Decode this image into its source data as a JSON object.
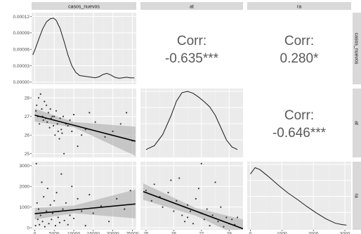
{
  "chart_data": {
    "type": "pairs",
    "variables": [
      "casos_nuevos",
      "at",
      "ra"
    ],
    "axis_ranges": {
      "casos_nuevos": [
        -800,
        26000
      ],
      "at": [
        24.8,
        28.5
      ],
      "ra": [
        -100,
        3200
      ]
    },
    "ticks": {
      "casos_nuevos": {
        "values": [
          0,
          5000,
          10000,
          15000,
          20000,
          25000
        ],
        "labels": [
          "0",
          "5000",
          "10000",
          "15000",
          "20000",
          "25000"
        ]
      },
      "at": {
        "values": [
          25,
          26,
          27,
          28
        ],
        "labels": [
          "25",
          "26",
          "27",
          "28"
        ]
      },
      "ra": {
        "values": [
          0,
          1000,
          2000,
          3000
        ],
        "labels": [
          "0",
          "1000",
          "2000",
          "3000"
        ]
      }
    },
    "density_ticks": {
      "values": [
        0,
        3e-05,
        6e-05,
        9e-05,
        0.00012
      ],
      "labels": [
        "0.00000",
        "0.00003",
        "0.00006",
        "0.00009",
        "0.00012"
      ],
      "range": [
        -4e-06,
        0.000127
      ]
    },
    "correlations": [
      {
        "row": "casos_nuevos",
        "col": "at",
        "label": "Corr:",
        "value": "-0.635***"
      },
      {
        "row": "casos_nuevos",
        "col": "ra",
        "label": "Corr:",
        "value": "0.280*"
      },
      {
        "row": "at",
        "col": "ra",
        "label": "Corr:",
        "value": "-0.646***"
      }
    ],
    "densities": {
      "casos_nuevos": {
        "x": [
          -500,
          0,
          1000,
          2000,
          3000,
          4000,
          4800,
          5500,
          6500,
          7500,
          8500,
          9500,
          10500,
          11500,
          12500,
          13500,
          14500,
          15500,
          16500,
          17500,
          18500,
          19500,
          20500,
          21500,
          22500,
          23500,
          24500,
          25500
        ],
        "y": [
          5e-05,
          5.8e-05,
          7.8e-05,
          9.7e-05,
          0.00011,
          0.000116,
          0.000117,
          0.000113,
          9.8e-05,
          7.5e-05,
          5e-05,
          3e-05,
          1.8e-05,
          1.2e-05,
          1.1e-05,
          1e-05,
          9e-06,
          8e-06,
          1e-05,
          1.4e-05,
          1.6e-05,
          1.3e-05,
          9e-06,
          7e-06,
          8e-06,
          9e-06,
          8e-06,
          8e-06
        ]
      },
      "at": {
        "x": [
          25.0,
          25.3,
          25.6,
          25.9,
          26.1,
          26.3,
          26.5,
          26.7,
          26.9,
          27.1,
          27.3,
          27.5,
          27.7,
          27.9,
          28.1,
          28.3
        ],
        "rel": [
          0.1,
          0.16,
          0.33,
          0.62,
          0.85,
          0.98,
          1.0,
          0.97,
          0.91,
          0.84,
          0.76,
          0.63,
          0.44,
          0.25,
          0.14,
          0.1
        ]
      },
      "ra": {
        "x": [
          0,
          150,
          300,
          600,
          900,
          1200,
          1500,
          1800,
          2100,
          2400,
          2700,
          2900,
          3050
        ],
        "rel": [
          0.85,
          0.95,
          0.92,
          0.8,
          0.67,
          0.55,
          0.45,
          0.34,
          0.24,
          0.15,
          0.08,
          0.06,
          0.05
        ]
      }
    },
    "scatter_at_vs_casos_nuevos": {
      "x": [
        300,
        500,
        800,
        1000,
        1200,
        1500,
        1800,
        2000,
        2200,
        2500,
        2800,
        3000,
        3200,
        3500,
        3800,
        4000,
        4200,
        4500,
        4800,
        5000,
        5200,
        5500,
        5800,
        6000,
        6300,
        6500,
        6800,
        7000,
        7300,
        7500,
        8000,
        8500,
        9000,
        9500,
        10000,
        11000,
        12000,
        13000,
        14000,
        15500,
        18000,
        20000,
        22000,
        23500,
        25000
      ],
      "y": [
        27.3,
        27.6,
        27.0,
        28.0,
        26.6,
        28.2,
        27.4,
        27.0,
        26.8,
        27.8,
        26.9,
        27.6,
        26.7,
        27.2,
        26.4,
        27.4,
        26.9,
        27.0,
        26.5,
        27.0,
        26.0,
        27.3,
        26.6,
        26.2,
        25.8,
        26.9,
        26.3,
        26.1,
        27.0,
        25.0,
        26.6,
        26.5,
        26.8,
        26.2,
        27.1,
        25.4,
        26.0,
        26.3,
        27.2,
        26.7,
        25.9,
        26.2,
        26.6,
        27.2,
        25.7
      ]
    },
    "scatter_ra_vs_casos_nuevos": {
      "x": [
        200,
        400,
        600,
        800,
        1000,
        1200,
        1500,
        1800,
        2000,
        2300,
        2600,
        3000,
        3300,
        3600,
        4000,
        4300,
        4600,
        5000,
        5300,
        5600,
        6000,
        6400,
        6800,
        7200,
        7600,
        8000,
        8500,
        9000,
        9500,
        10000,
        11000,
        12000,
        13000,
        14000,
        15000,
        17000,
        19000,
        21000,
        23000,
        24500
      ],
      "y": [
        100,
        3100,
        1200,
        400,
        900,
        150,
        600,
        2200,
        300,
        1500,
        50,
        800,
        1900,
        200,
        1100,
        400,
        700,
        1300,
        100,
        1700,
        500,
        250,
        2600,
        900,
        350,
        1200,
        150,
        600,
        2000,
        450,
        1400,
        800,
        100,
        1600,
        700,
        1050,
        300,
        1400,
        900,
        1800
      ]
    },
    "scatter_ra_vs_at": {
      "x": [
        25.0,
        25.2,
        25.3,
        25.5,
        25.6,
        25.8,
        25.9,
        26.0,
        26.1,
        26.2,
        26.3,
        26.4,
        26.5,
        26.5,
        26.6,
        26.7,
        26.8,
        26.9,
        27.0,
        27.0,
        27.1,
        27.2,
        27.3,
        27.4,
        27.5,
        27.6,
        27.7,
        27.8,
        27.9,
        28.0,
        28.1,
        28.2,
        28.3
      ],
      "y": [
        1800,
        1300,
        2100,
        1500,
        1000,
        1700,
        2300,
        800,
        1300,
        2400,
        600,
        300,
        1100,
        500,
        800,
        200,
        1400,
        1900,
        700,
        3100,
        400,
        900,
        100,
        600,
        2200,
        300,
        1000,
        50,
        500,
        200,
        400,
        150,
        500
      ]
    },
    "fits": {
      "at_vs_casos_nuevos": {
        "x": [
          0,
          25800
        ],
        "y": [
          27.07,
          25.67
        ],
        "se_low": [
          26.72,
          24.88
        ],
        "se_mid_low": 26.42,
        "se_high": [
          27.42,
          26.45
        ],
        "se_mid_high": 26.7,
        "x_mid": 10000
      },
      "ra_vs_casos_nuevos": {
        "x": [
          0,
          25800
        ],
        "y": [
          680,
          1150
        ],
        "se_low": [
          400,
          450
        ],
        "se_mid_low": 700,
        "se_high": [
          960,
          1850
        ],
        "se_mid_high": 1070,
        "x_mid": 10000
      },
      "ra_vs_at": {
        "x": [
          24.9,
          28.5
        ],
        "y": [
          1750,
          -50
        ],
        "se_low": [
          1350,
          -500
        ],
        "se_mid_low": 580,
        "se_high": [
          2150,
          400
        ],
        "se_mid_high": 950,
        "x_mid": 26.8
      }
    }
  }
}
